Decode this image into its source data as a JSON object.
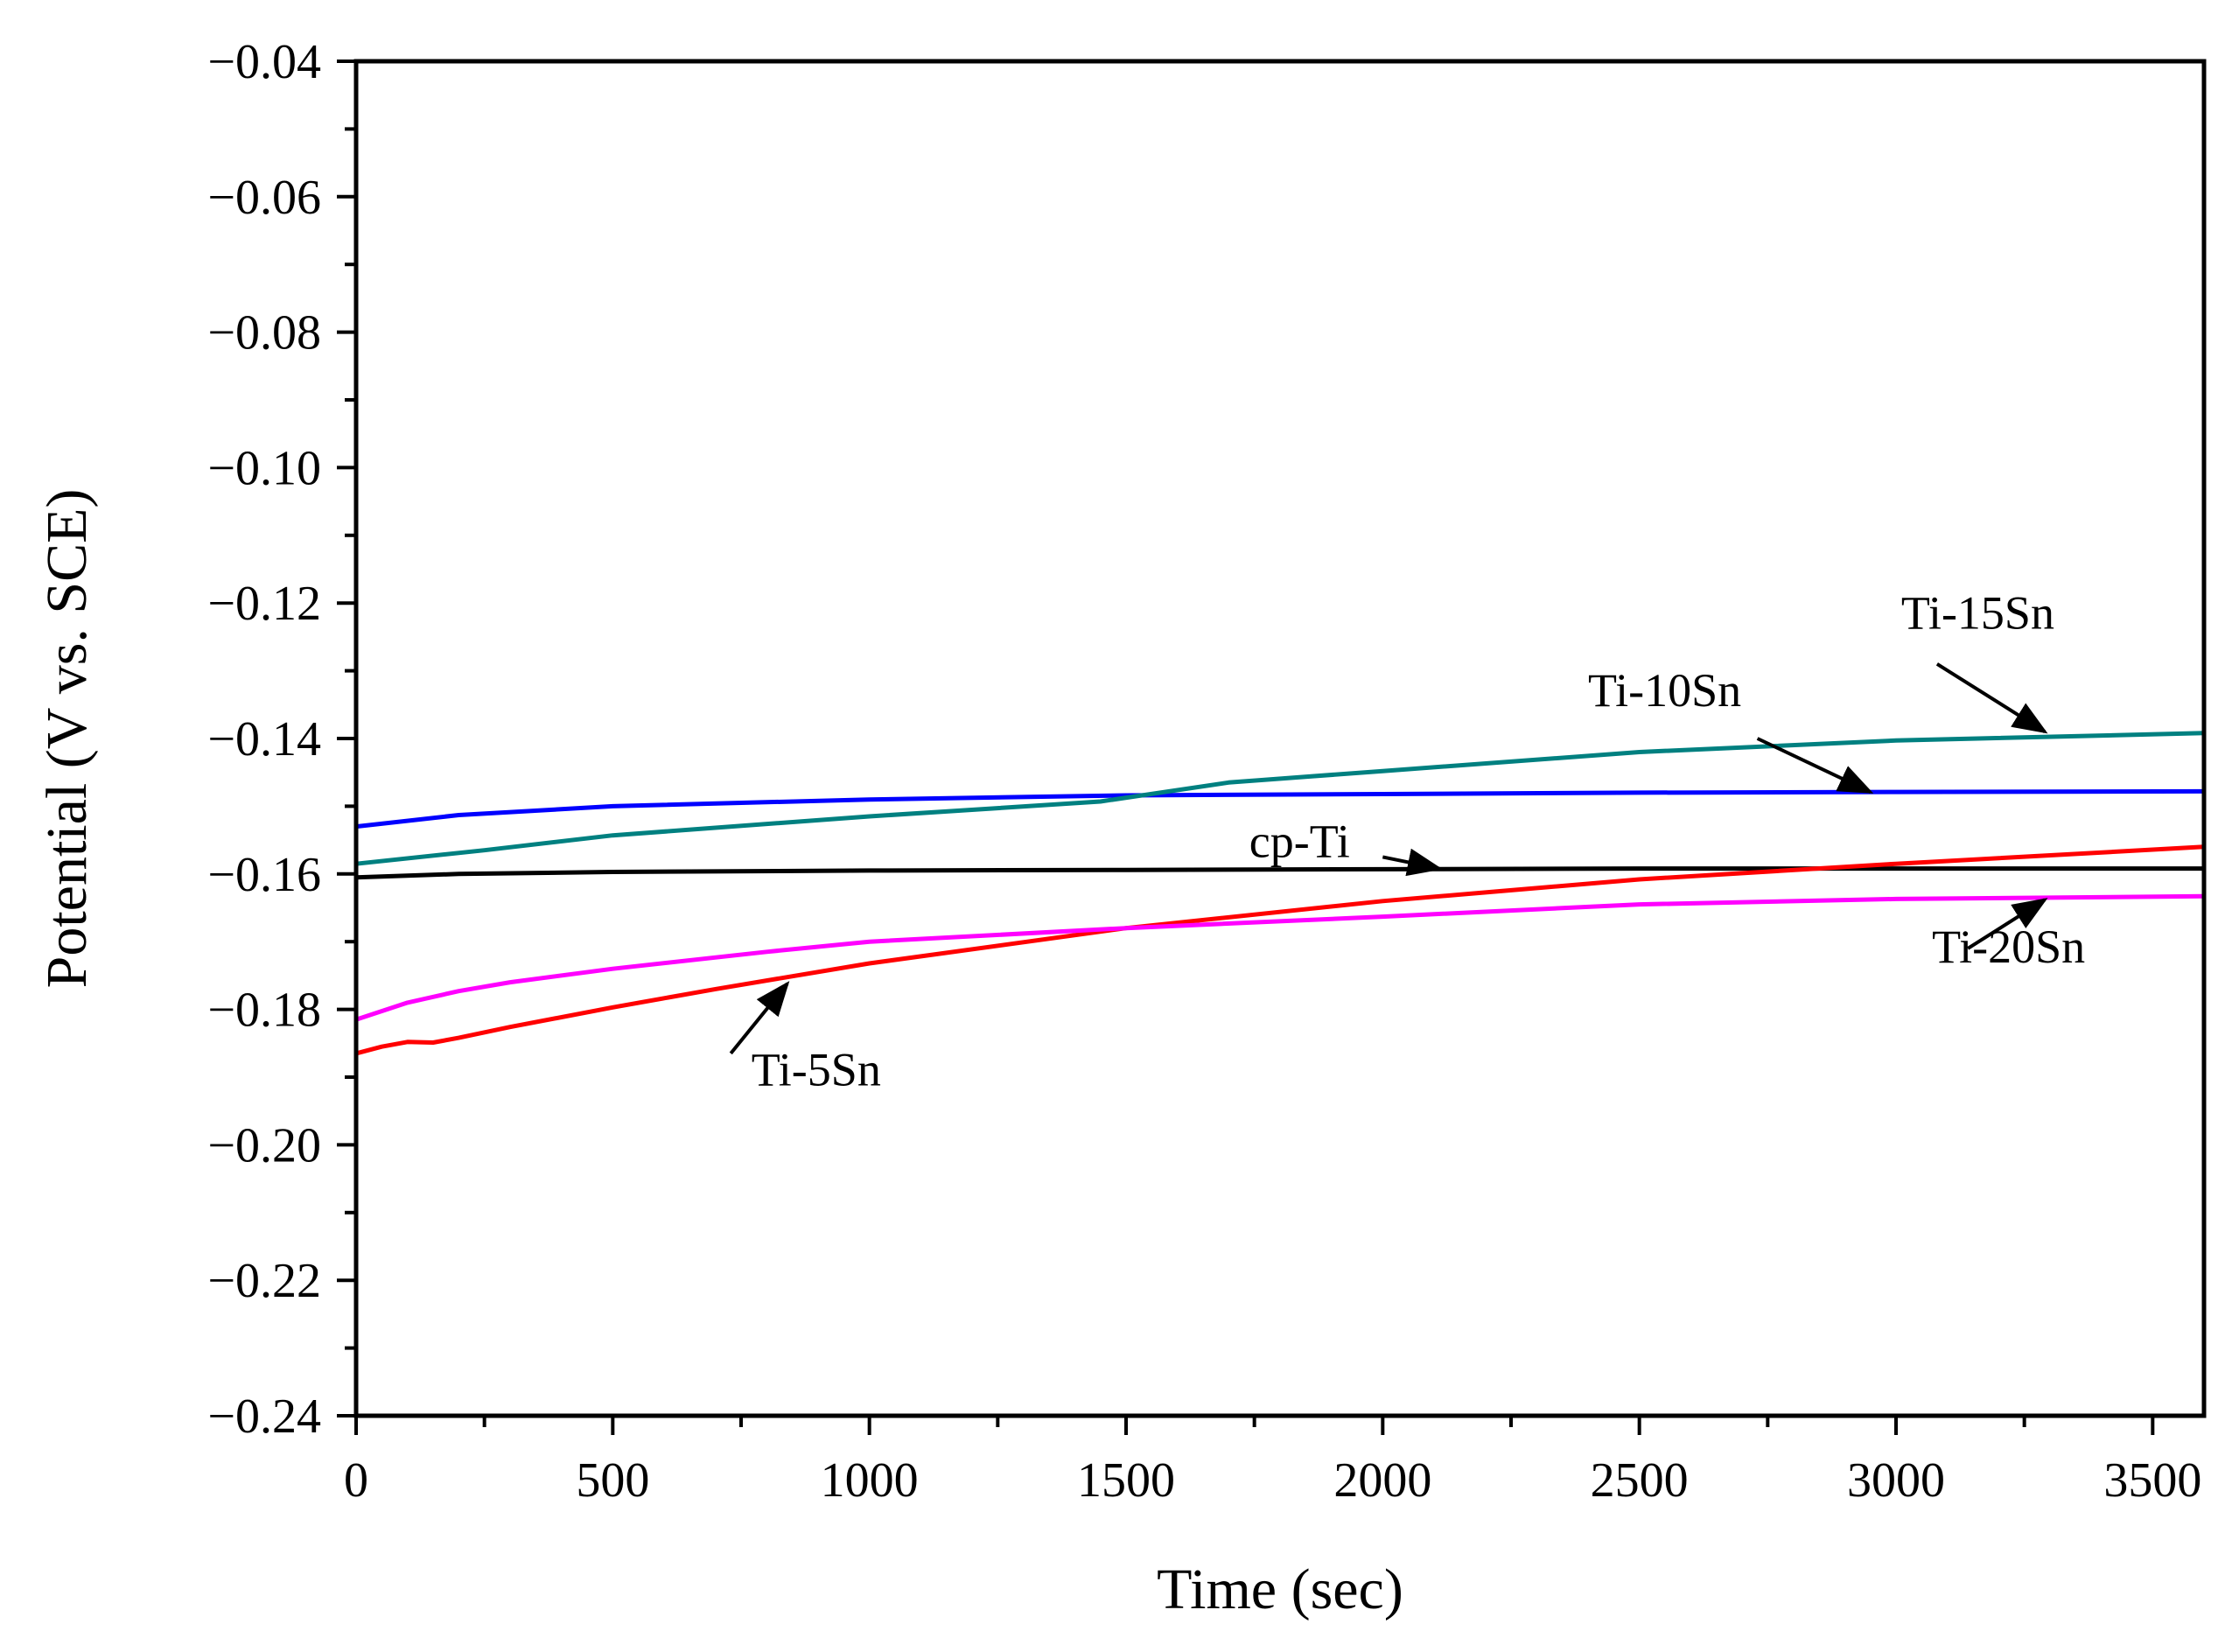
{
  "chart_data": {
    "type": "line",
    "title": "",
    "xlabel": "Time (sec)",
    "ylabel": "Potential (V vs. SCE)",
    "xlim": [
      0,
      3600
    ],
    "ylim": [
      -0.24,
      -0.04
    ],
    "xticks": [
      0,
      500,
      1000,
      1500,
      2000,
      2500,
      3000,
      3500
    ],
    "yticks": [
      -0.04,
      -0.06,
      -0.08,
      -0.1,
      -0.12,
      -0.14,
      -0.16,
      -0.18,
      -0.2,
      -0.22,
      -0.24
    ],
    "xtick_labels": [
      "0",
      "500",
      "1000",
      "1500",
      "2000",
      "2500",
      "3000",
      "3500"
    ],
    "ytick_labels": [
      "−0.04",
      "−0.06",
      "−0.08",
      "−0.10",
      "−0.12",
      "−0.14",
      "−0.16",
      "−0.18",
      "−0.20",
      "−0.22",
      "−0.24"
    ],
    "grid": false,
    "legend": "none",
    "series": [
      {
        "name": "cp-Ti",
        "color": "#000000",
        "x": [
          0,
          200,
          500,
          1000,
          1500,
          2000,
          2500,
          3000,
          3600
        ],
        "y": [
          -0.1605,
          -0.16,
          -0.1597,
          -0.1595,
          -0.1594,
          -0.1593,
          -0.1592,
          -0.1592,
          -0.1592
        ]
      },
      {
        "name": "Ti-5Sn",
        "color": "#ff0000",
        "x": [
          0,
          50,
          100,
          150,
          200,
          300,
          500,
          700,
          1000,
          1500,
          2000,
          2500,
          3000,
          3600
        ],
        "y": [
          -0.1865,
          -0.1855,
          -0.1848,
          -0.1849,
          -0.1842,
          -0.1826,
          -0.1797,
          -0.177,
          -0.1732,
          -0.168,
          -0.164,
          -0.1608,
          -0.1585,
          -0.156
        ]
      },
      {
        "name": "Ti-10Sn",
        "color": "#0000ff",
        "x": [
          0,
          200,
          500,
          1000,
          1500,
          2000,
          2500,
          3000,
          3600
        ],
        "y": [
          -0.153,
          -0.1513,
          -0.15,
          -0.149,
          -0.1484,
          -0.1482,
          -0.148,
          -0.1479,
          -0.1478
        ]
      },
      {
        "name": "Ti-15Sn",
        "color": "#008080",
        "x": [
          0,
          250,
          500,
          1000,
          1450,
          1700,
          2000,
          2500,
          3000,
          3600
        ],
        "y": [
          -0.1585,
          -0.1565,
          -0.1543,
          -0.1515,
          -0.1493,
          -0.1465,
          -0.1448,
          -0.142,
          -0.1403,
          -0.1392
        ]
      },
      {
        "name": "Ti-20Sn",
        "color": "#ff00ff",
        "x": [
          0,
          100,
          200,
          300,
          500,
          800,
          1000,
          1500,
          2000,
          2500,
          3000,
          3600
        ],
        "y": [
          -0.1815,
          -0.179,
          -0.1773,
          -0.176,
          -0.174,
          -0.1715,
          -0.17,
          -0.168,
          -0.1663,
          -0.1645,
          -0.1637,
          -0.1633
        ]
      }
    ],
    "annotations": [
      {
        "text": "cp-Ti",
        "series": "cp-Ti",
        "label_x": 1740,
        "label_y": -0.1575,
        "tail_x": 2000,
        "tail_y": -0.1575,
        "head_x": 2110,
        "head_y": -0.1592
      },
      {
        "text": "Ti-5Sn",
        "series": "Ti-5Sn",
        "label_x": 770,
        "label_y": -0.1912,
        "tail_x": 730,
        "tail_y": -0.1865,
        "head_x": 840,
        "head_y": -0.1762
      },
      {
        "text": "Ti-10Sn",
        "series": "Ti-10Sn",
        "label_x": 2400,
        "label_y": -0.1352,
        "tail_x": 2730,
        "tail_y": -0.14,
        "head_x": 2950,
        "head_y": -0.1479
      },
      {
        "text": "Ti-15Sn",
        "series": "Ti-15Sn",
        "label_x": 3010,
        "label_y": -0.1238,
        "tail_x": 3080,
        "tail_y": -0.129,
        "head_x": 3290,
        "head_y": -0.139
      },
      {
        "text": "Ti-20Sn",
        "series": "Ti-20Sn",
        "label_x": 3070,
        "label_y": -0.1731,
        "tail_x": 3140,
        "tail_y": -0.171,
        "head_x": 3290,
        "head_y": -0.1638
      }
    ]
  }
}
